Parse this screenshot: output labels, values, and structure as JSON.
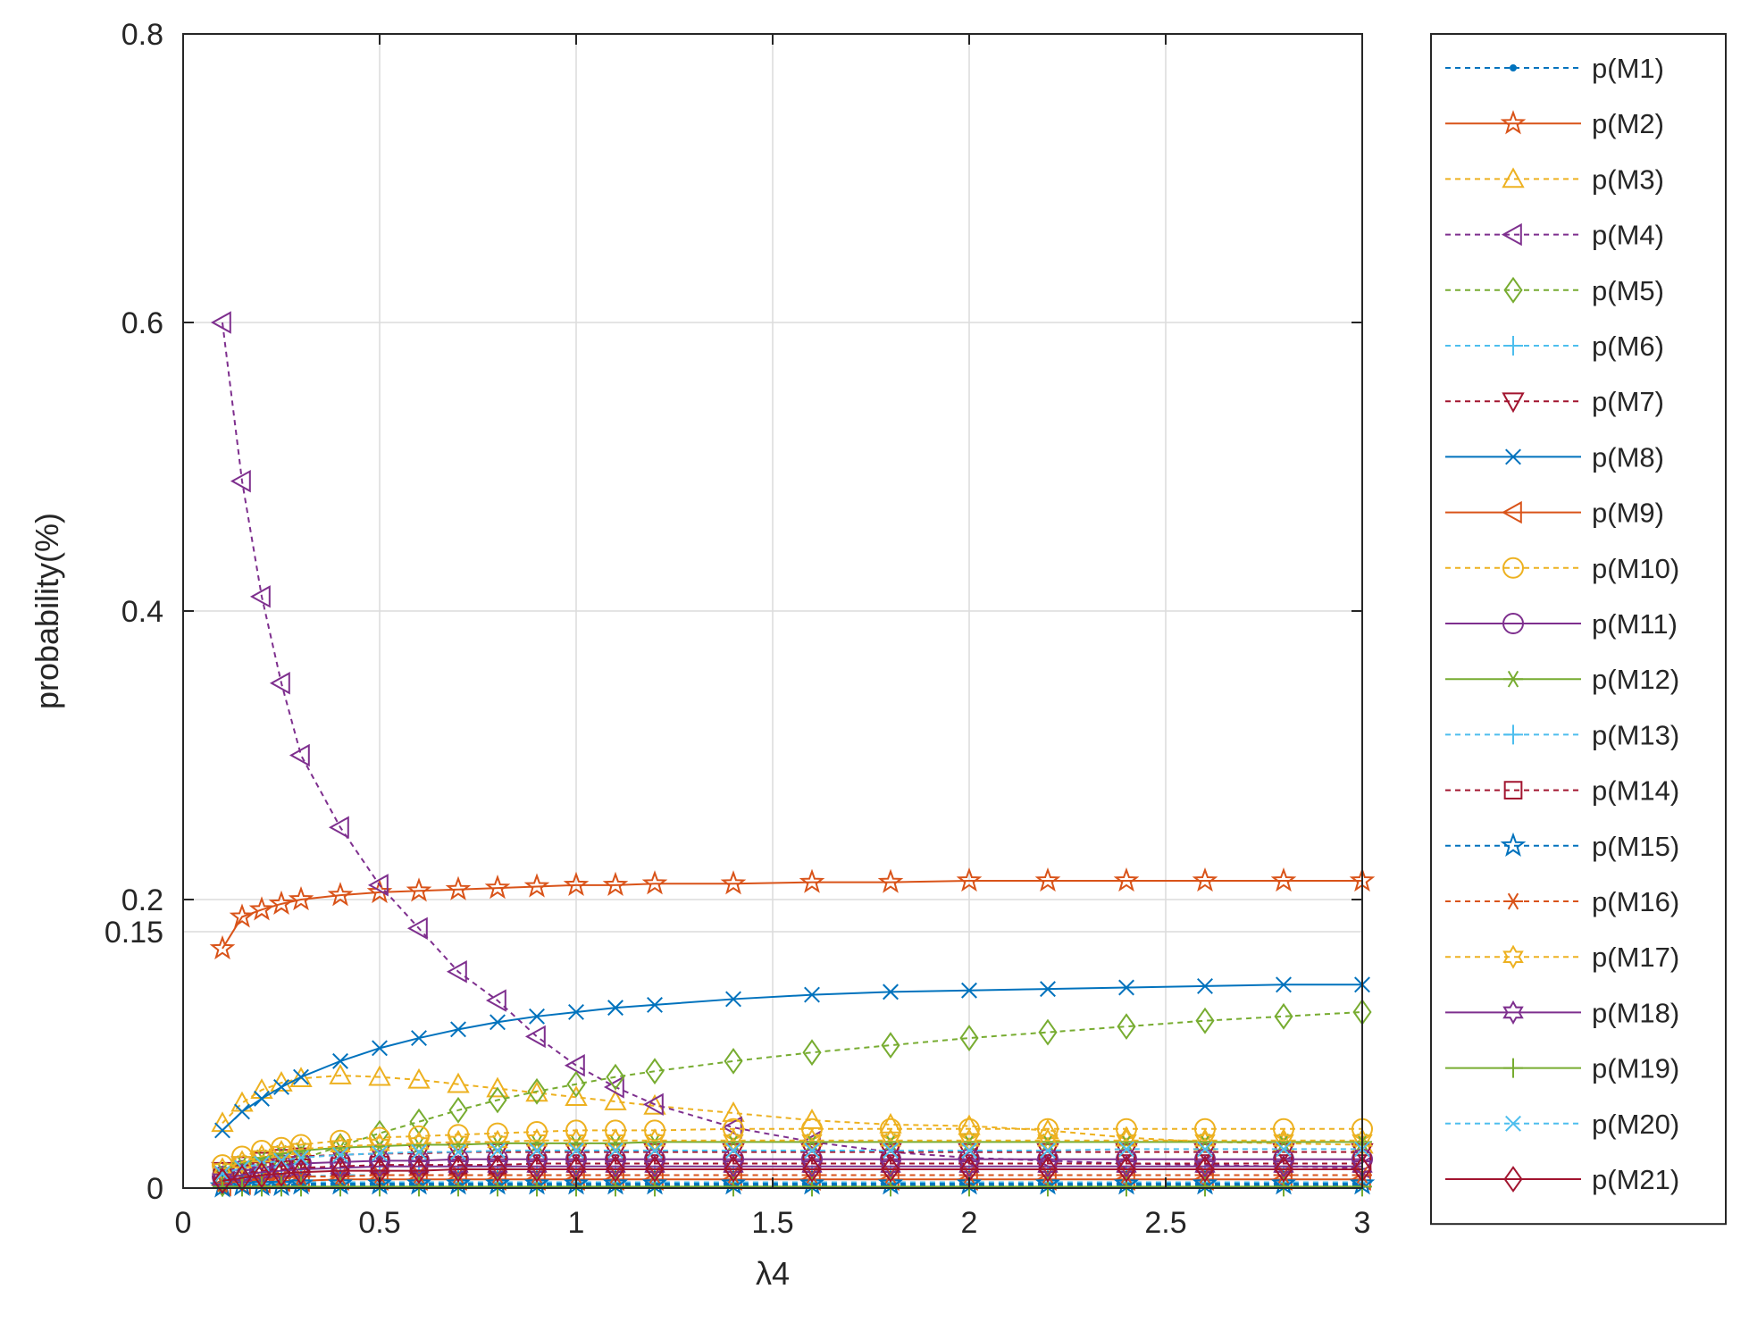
{
  "chart_data": {
    "type": "line",
    "title": "",
    "xlabel": "λ4",
    "ylabel": "probability(%)",
    "xlim": [
      0,
      3
    ],
    "ylim": [
      0,
      0.8
    ],
    "grid": true,
    "legend_position": "outside-right",
    "x_ticks": [
      {
        "value": 0,
        "label": "0"
      },
      {
        "value": 0.5,
        "label": "0.5"
      },
      {
        "value": 1,
        "label": "1"
      },
      {
        "value": 1.5,
        "label": "1.5"
      },
      {
        "value": 2,
        "label": "2"
      },
      {
        "value": 2.5,
        "label": "2.5"
      },
      {
        "value": 3,
        "label": "3"
      }
    ],
    "y_ticks": [
      {
        "value": 0,
        "label": "0"
      },
      {
        "value": 0.2,
        "label": "0.2"
      },
      {
        "value": 0.4,
        "label": "0.4"
      },
      {
        "value": 0.6,
        "label": "0.6"
      },
      {
        "value": 0.8,
        "label": "0.8"
      }
    ],
    "y_overlay_labels": [
      {
        "value": 0.15,
        "label": "0.15"
      }
    ],
    "x": [
      0.1,
      0.15,
      0.2,
      0.25,
      0.3,
      0.4,
      0.5,
      0.6,
      0.7,
      0.8,
      0.9,
      1.0,
      1.1,
      1.2,
      1.4,
      1.6,
      1.8,
      2.0,
      2.2,
      2.4,
      2.6,
      2.8,
      3.0
    ],
    "series": [
      {
        "name": "p(M1)",
        "color": "#0072BD",
        "dash": "6,5",
        "marker": "point",
        "values": [
          0.002,
          0.002,
          0.002,
          0.002,
          0.002,
          0.002,
          0.002,
          0.002,
          0.002,
          0.002,
          0.002,
          0.002,
          0.002,
          0.002,
          0.002,
          0.002,
          0.002,
          0.002,
          0.002,
          0.002,
          0.002,
          0.002,
          0.002
        ]
      },
      {
        "name": "p(M2)",
        "color": "#D95319",
        "dash": "",
        "marker": "pentagram",
        "values": [
          0.166,
          0.188,
          0.193,
          0.197,
          0.2,
          0.203,
          0.205,
          0.206,
          0.207,
          0.208,
          0.209,
          0.21,
          0.21,
          0.211,
          0.211,
          0.212,
          0.212,
          0.213,
          0.213,
          0.213,
          0.213,
          0.213,
          0.213
        ]
      },
      {
        "name": "p(M3)",
        "color": "#EDB120",
        "dash": "6,5",
        "marker": "triangle-up",
        "values": [
          0.045,
          0.059,
          0.068,
          0.073,
          0.076,
          0.078,
          0.077,
          0.075,
          0.072,
          0.069,
          0.066,
          0.063,
          0.06,
          0.057,
          0.052,
          0.047,
          0.044,
          0.043,
          0.04,
          0.035,
          0.032,
          0.031,
          0.03
        ]
      },
      {
        "name": "p(M4)",
        "color": "#7E2F8E",
        "dash": "6,5",
        "marker": "triangle-left",
        "values": [
          0.6,
          0.49,
          0.41,
          0.35,
          0.3,
          0.25,
          0.21,
          0.18,
          0.15,
          0.13,
          0.105,
          0.085,
          0.07,
          0.058,
          0.042,
          0.032,
          0.025,
          0.021,
          0.019,
          0.017,
          0.016,
          0.015,
          0.014
        ]
      },
      {
        "name": "p(M5)",
        "color": "#77AC30",
        "dash": "6,5",
        "marker": "diamond",
        "values": [
          0.003,
          0.006,
          0.01,
          0.015,
          0.02,
          0.029,
          0.038,
          0.046,
          0.054,
          0.061,
          0.067,
          0.072,
          0.077,
          0.081,
          0.088,
          0.094,
          0.099,
          0.104,
          0.108,
          0.112,
          0.116,
          0.119,
          0.122
        ]
      },
      {
        "name": "p(M6)",
        "color": "#4DBEEE",
        "dash": "6,5",
        "marker": "plus",
        "values": [
          0.004,
          0.006,
          0.007,
          0.008,
          0.008,
          0.009,
          0.009,
          0.009,
          0.009,
          0.009,
          0.009,
          0.009,
          0.009,
          0.009,
          0.009,
          0.009,
          0.009,
          0.009,
          0.009,
          0.009,
          0.009,
          0.009,
          0.009
        ]
      },
      {
        "name": "p(M7)",
        "color": "#A2142F",
        "dash": "6,5",
        "marker": "triangle-down",
        "values": [
          0.012,
          0.016,
          0.019,
          0.021,
          0.022,
          0.023,
          0.024,
          0.024,
          0.025,
          0.025,
          0.025,
          0.025,
          0.025,
          0.025,
          0.025,
          0.025,
          0.025,
          0.025,
          0.025,
          0.025,
          0.025,
          0.025,
          0.025
        ]
      },
      {
        "name": "p(M8)",
        "color": "#0072BD",
        "dash": "",
        "marker": "x",
        "values": [
          0.04,
          0.053,
          0.062,
          0.07,
          0.077,
          0.088,
          0.097,
          0.104,
          0.11,
          0.115,
          0.119,
          0.122,
          0.125,
          0.127,
          0.131,
          0.134,
          0.136,
          0.137,
          0.138,
          0.139,
          0.14,
          0.141,
          0.141
        ]
      },
      {
        "name": "p(M9)",
        "color": "#D95319",
        "dash": "",
        "marker": "triangle-left",
        "values": [
          0.002,
          0.003,
          0.004,
          0.005,
          0.005,
          0.006,
          0.006,
          0.006,
          0.006,
          0.006,
          0.006,
          0.006,
          0.006,
          0.006,
          0.006,
          0.006,
          0.006,
          0.006,
          0.006,
          0.006,
          0.006,
          0.006,
          0.006
        ]
      },
      {
        "name": "p(M10)",
        "color": "#EDB120",
        "dash": "6,5",
        "marker": "circle",
        "values": [
          0.016,
          0.022,
          0.026,
          0.028,
          0.03,
          0.033,
          0.035,
          0.036,
          0.037,
          0.038,
          0.039,
          0.04,
          0.04,
          0.04,
          0.041,
          0.041,
          0.041,
          0.041,
          0.041,
          0.041,
          0.041,
          0.041,
          0.041
        ]
      },
      {
        "name": "p(M11)",
        "color": "#7E2F8E",
        "dash": "",
        "marker": "circle",
        "values": [
          0.008,
          0.012,
          0.014,
          0.016,
          0.017,
          0.018,
          0.019,
          0.019,
          0.02,
          0.02,
          0.02,
          0.02,
          0.02,
          0.02,
          0.02,
          0.02,
          0.02,
          0.02,
          0.02,
          0.02,
          0.02,
          0.02,
          0.02
        ]
      },
      {
        "name": "p(M12)",
        "color": "#77AC30",
        "dash": "",
        "marker": "asterisk",
        "values": [
          0.012,
          0.017,
          0.021,
          0.024,
          0.026,
          0.028,
          0.029,
          0.03,
          0.03,
          0.031,
          0.031,
          0.031,
          0.031,
          0.032,
          0.032,
          0.032,
          0.032,
          0.032,
          0.032,
          0.032,
          0.032,
          0.032,
          0.032
        ]
      },
      {
        "name": "p(M13)",
        "color": "#4DBEEE",
        "dash": "6,5",
        "marker": "plus",
        "values": [
          0.002,
          0.003,
          0.003,
          0.004,
          0.004,
          0.004,
          0.004,
          0.004,
          0.004,
          0.004,
          0.004,
          0.004,
          0.004,
          0.004,
          0.004,
          0.004,
          0.004,
          0.004,
          0.004,
          0.004,
          0.004,
          0.004,
          0.004
        ]
      },
      {
        "name": "p(M14)",
        "color": "#A2142F",
        "dash": "6,5",
        "marker": "square",
        "values": [
          0.007,
          0.01,
          0.012,
          0.013,
          0.014,
          0.015,
          0.016,
          0.016,
          0.016,
          0.016,
          0.017,
          0.017,
          0.017,
          0.017,
          0.017,
          0.017,
          0.017,
          0.017,
          0.017,
          0.017,
          0.017,
          0.017,
          0.017
        ]
      },
      {
        "name": "p(M15)",
        "color": "#0072BD",
        "dash": "6,5",
        "marker": "pentagram",
        "values": [
          0.001,
          0.002,
          0.002,
          0.002,
          0.003,
          0.003,
          0.003,
          0.003,
          0.003,
          0.003,
          0.003,
          0.003,
          0.003,
          0.003,
          0.003,
          0.003,
          0.003,
          0.003,
          0.003,
          0.003,
          0.003,
          0.003,
          0.003
        ]
      },
      {
        "name": "p(M16)",
        "color": "#D95319",
        "dash": "6,5",
        "marker": "asterisk",
        "values": [
          0.003,
          0.005,
          0.006,
          0.007,
          0.008,
          0.008,
          0.009,
          0.009,
          0.009,
          0.009,
          0.009,
          0.009,
          0.009,
          0.009,
          0.009,
          0.009,
          0.009,
          0.009,
          0.009,
          0.009,
          0.009,
          0.009,
          0.009
        ]
      },
      {
        "name": "p(M17)",
        "color": "#EDB120",
        "dash": "6,5",
        "marker": "hexagram",
        "values": [
          0.013,
          0.018,
          0.022,
          0.025,
          0.027,
          0.029,
          0.03,
          0.031,
          0.032,
          0.032,
          0.033,
          0.033,
          0.033,
          0.033,
          0.033,
          0.033,
          0.033,
          0.033,
          0.033,
          0.033,
          0.033,
          0.033,
          0.033
        ]
      },
      {
        "name": "p(M18)",
        "color": "#7E2F8E",
        "dash": "",
        "marker": "hexagram",
        "values": [
          0.006,
          0.009,
          0.011,
          0.012,
          0.013,
          0.014,
          0.015,
          0.015,
          0.015,
          0.015,
          0.015,
          0.015,
          0.015,
          0.015,
          0.015,
          0.015,
          0.015,
          0.015,
          0.015,
          0.015,
          0.015,
          0.015,
          0.015
        ]
      },
      {
        "name": "p(M19)",
        "color": "#77AC30",
        "dash": "",
        "marker": "plus",
        "values": [
          0.001,
          0.001,
          0.001,
          0.001,
          0.001,
          0.001,
          0.001,
          0.001,
          0.001,
          0.001,
          0.001,
          0.001,
          0.001,
          0.001,
          0.001,
          0.001,
          0.001,
          0.001,
          0.001,
          0.001,
          0.001,
          0.001,
          0.001
        ]
      },
      {
        "name": "p(M20)",
        "color": "#4DBEEE",
        "dash": "6,5",
        "marker": "x",
        "values": [
          0.01,
          0.014,
          0.017,
          0.019,
          0.021,
          0.023,
          0.024,
          0.025,
          0.025,
          0.026,
          0.026,
          0.026,
          0.026,
          0.026,
          0.026,
          0.026,
          0.026,
          0.026,
          0.026,
          0.027,
          0.027,
          0.027,
          0.027
        ]
      },
      {
        "name": "p(M21)",
        "color": "#A2142F",
        "dash": "",
        "marker": "diamond",
        "values": [
          0.005,
          0.007,
          0.009,
          0.01,
          0.011,
          0.012,
          0.012,
          0.012,
          0.013,
          0.013,
          0.013,
          0.013,
          0.013,
          0.013,
          0.013,
          0.013,
          0.013,
          0.013,
          0.013,
          0.013,
          0.013,
          0.013,
          0.013
        ]
      }
    ]
  }
}
